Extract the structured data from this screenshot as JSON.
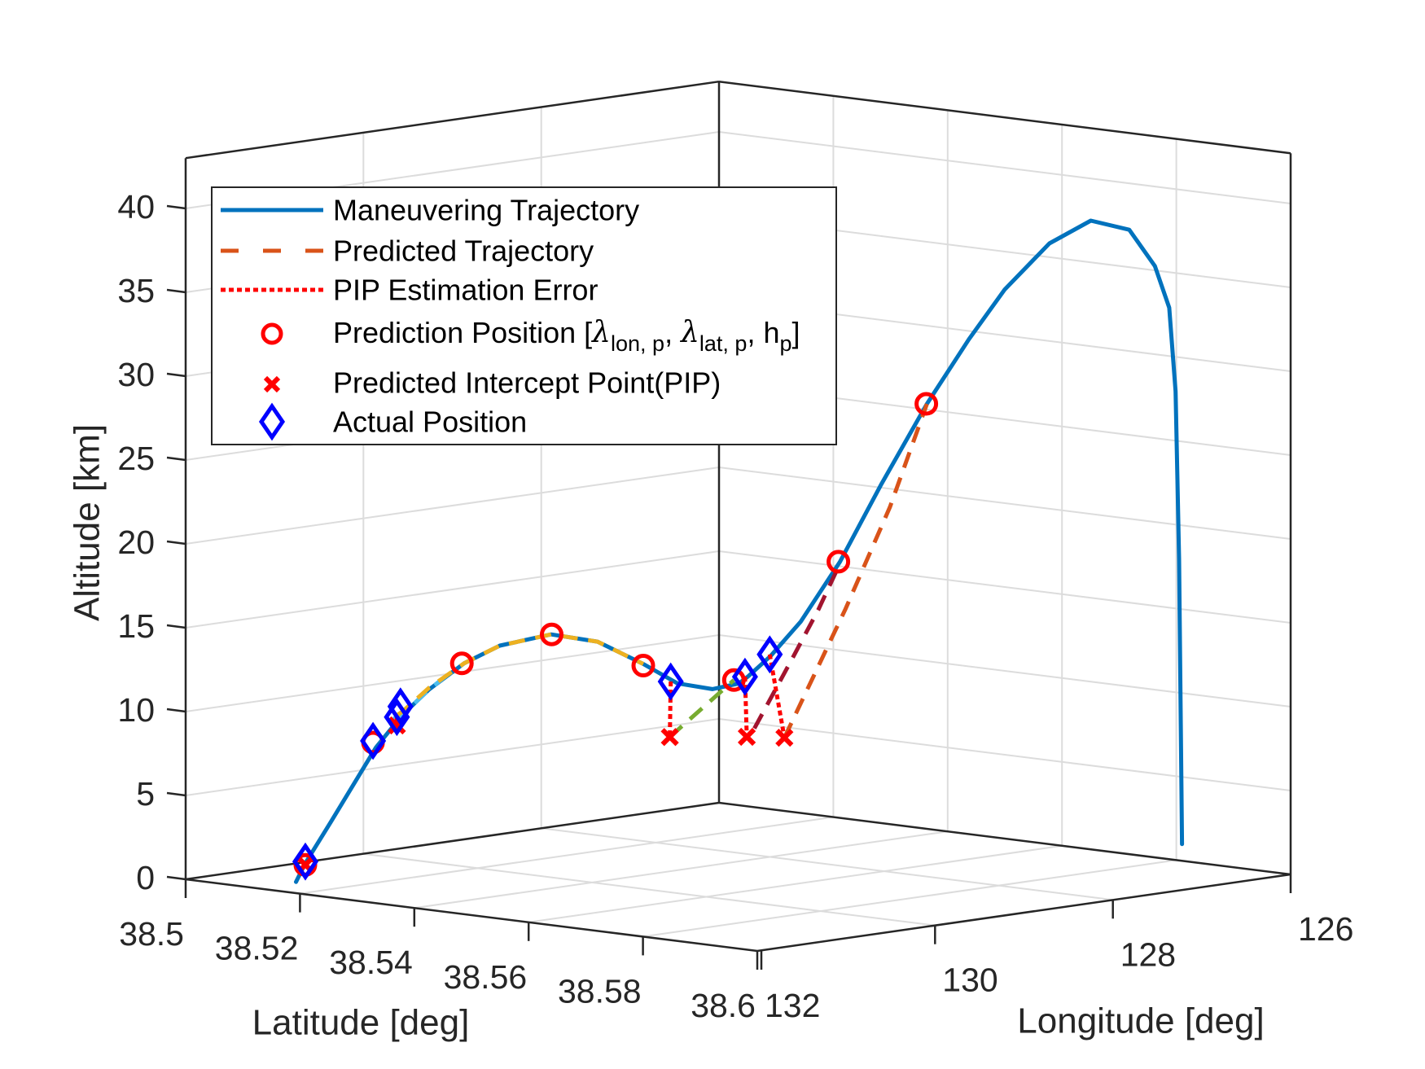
{
  "chart_data": {
    "type": "line3d",
    "title": "",
    "xlabel": "Longitude [deg]",
    "ylabel": "Latitude [deg]",
    "zlabel": "Altitude [km]",
    "xlim": [
      126,
      132
    ],
    "ylim": [
      38.5,
      38.6
    ],
    "zlim": [
      0,
      43
    ],
    "grid": true,
    "legend_position": "top-left",
    "x_ticks": [
      {
        "value": 132,
        "label": "132"
      },
      {
        "value": 130,
        "label": "130"
      },
      {
        "value": 128,
        "label": "128"
      },
      {
        "value": 126,
        "label": "126"
      }
    ],
    "y_ticks": [
      {
        "value": 38.5,
        "label": "38.5"
      },
      {
        "value": 38.52,
        "label": "38.52"
      },
      {
        "value": 38.54,
        "label": "38.54"
      },
      {
        "value": 38.56,
        "label": "38.56"
      },
      {
        "value": 38.58,
        "label": "38.58"
      },
      {
        "value": 38.6,
        "label": "38.6"
      }
    ],
    "z_ticks": [
      {
        "value": 0,
        "label": "0"
      },
      {
        "value": 5,
        "label": "5"
      },
      {
        "value": 10,
        "label": "10"
      },
      {
        "value": 15,
        "label": "15"
      },
      {
        "value": 20,
        "label": "20"
      },
      {
        "value": 25,
        "label": "25"
      },
      {
        "value": 30,
        "label": "30"
      },
      {
        "value": 35,
        "label": "35"
      },
      {
        "value": 40,
        "label": "40"
      }
    ],
    "legend": [
      {
        "label": "Maneuvering Trajectory",
        "style": "solid",
        "color": "#0072BD"
      },
      {
        "label": "Predicted Trajectory",
        "style": "dashed",
        "color": "#D95319"
      },
      {
        "label": "PIP Estimation Error",
        "style": "dotted",
        "color": "#FF0000"
      },
      {
        "parts": [
          "Prediction Position [",
          "λ",
          "lon, p",
          ", ",
          "λ",
          "lat, p",
          ", h",
          "p",
          "]"
        ],
        "style": "circle",
        "color": "#FF0000"
      },
      {
        "label": "Predicted Intercept Point(PIP)",
        "style": "x",
        "color": "#FF0000"
      },
      {
        "label": "Actual Position",
        "style": "diamond",
        "color": "#0000FF"
      }
    ],
    "series": {
      "maneuvering_trajectory": {
        "name": "Maneuvering Trajectory",
        "color": "#0072BD",
        "points_lon_lat_alt": [
          [
            131.53,
            38.512,
            0.0
          ],
          [
            131.47,
            38.5127,
            1.1
          ],
          [
            131.31,
            38.5148,
            3.6
          ],
          [
            131.03,
            38.5182,
            7.9
          ],
          [
            130.87,
            38.5203,
            9.8
          ],
          [
            130.7,
            38.5224,
            11.3
          ],
          [
            130.48,
            38.5251,
            12.8
          ],
          [
            130.26,
            38.5279,
            13.8
          ],
          [
            129.94,
            38.5319,
            14.4
          ],
          [
            129.65,
            38.5355,
            13.9
          ],
          [
            129.36,
            38.539,
            12.5
          ],
          [
            129.15,
            38.5417,
            11.3
          ],
          [
            128.93,
            38.5444,
            10.9
          ],
          [
            128.77,
            38.5465,
            11.2
          ],
          [
            128.71,
            38.5472,
            11.6
          ],
          [
            128.57,
            38.549,
            12.8
          ],
          [
            128.38,
            38.5513,
            14.8
          ],
          [
            128.14,
            38.5544,
            18.3
          ],
          [
            127.88,
            38.5575,
            22.8
          ],
          [
            127.59,
            38.5611,
            27.6
          ],
          [
            127.33,
            38.5644,
            31.4
          ],
          [
            127.11,
            38.5672,
            34.3
          ],
          [
            126.83,
            38.5707,
            37.0
          ],
          [
            126.57,
            38.5739,
            38.3
          ],
          [
            126.33,
            38.5769,
            37.7
          ],
          [
            126.17,
            38.5789,
            35.5
          ],
          [
            126.08,
            38.58,
            33.0
          ],
          [
            126.04,
            38.5805,
            28.0
          ],
          [
            126.02,
            38.5808,
            18.0
          ],
          [
            126.0,
            38.581,
            1.0
          ]
        ]
      },
      "predicted_trajectories": [
        {
          "color": "#4DBEEE",
          "points_lon_lat_alt": [
            [
              130.93,
              38.5197,
              9.6
            ],
            [
              130.87,
              38.5203,
              9.8
            ],
            [
              130.7,
              38.5224,
              11.3
            ],
            [
              130.55,
              38.5243,
              12.4
            ]
          ]
        },
        {
          "color": "#EDB120",
          "points_lon_lat_alt": [
            [
              130.91,
              38.52,
              9.8
            ],
            [
              130.87,
              38.5203,
              10.0
            ],
            [
              130.7,
              38.5224,
              11.4
            ],
            [
              130.48,
              38.5251,
              12.8
            ],
            [
              130.26,
              38.5279,
              13.8
            ],
            [
              129.94,
              38.5319,
              14.4
            ],
            [
              129.65,
              38.5355,
              13.9
            ],
            [
              129.36,
              38.539,
              12.5
            ]
          ]
        },
        {
          "color": "#77AC30",
          "points_lon_lat_alt": [
            [
              129.19,
              38.541,
              8.1
            ],
            [
              128.79,
              38.546,
              11.4
            ]
          ]
        },
        {
          "color": "#A2142F",
          "points_lon_lat_alt": [
            [
              128.67,
              38.5477,
              8.5
            ],
            [
              128.43,
              38.5506,
              12.6
            ],
            [
              128.27,
              38.5527,
              15.5
            ],
            [
              128.13,
              38.5544,
              18.3
            ]
          ]
        },
        {
          "color": "#D95319",
          "points_lon_lat_alt": [
            [
              128.48,
              38.55,
              7.9
            ],
            [
              128.1,
              38.5548,
              15.5
            ],
            [
              127.82,
              38.5582,
              21.5
            ],
            [
              127.59,
              38.5611,
              27.6
            ]
          ]
        }
      ],
      "prediction_positions": {
        "color": "#FF0000",
        "points_lon_lat_alt": [
          [
            131.47,
            38.5127,
            1.0
          ],
          [
            131.05,
            38.518,
            8.2
          ],
          [
            130.5,
            38.525,
            12.8
          ],
          [
            129.94,
            38.532,
            14.4
          ],
          [
            129.36,
            38.539,
            12.4
          ],
          [
            128.79,
            38.546,
            11.4
          ],
          [
            128.13,
            38.554,
            18.3
          ],
          [
            127.59,
            38.561,
            27.6
          ]
        ]
      },
      "predicted_intercept_points": {
        "color": "#FF0000",
        "points_lon_lat_alt": [
          [
            131.47,
            38.5127,
            1.0
          ],
          [
            130.91,
            38.52,
            9.2
          ],
          [
            129.19,
            38.541,
            8.1
          ],
          [
            128.71,
            38.547,
            8.0
          ],
          [
            128.48,
            38.55,
            7.9
          ]
        ]
      },
      "actual_positions": {
        "color": "#0000FF",
        "points_lon_lat_alt": [
          [
            131.47,
            38.5127,
            1.2
          ],
          [
            131.05,
            38.518,
            8.3
          ],
          [
            130.91,
            38.52,
            9.7
          ],
          [
            130.87,
            38.52,
            10.3
          ],
          [
            129.18,
            38.541,
            11.4
          ],
          [
            128.73,
            38.547,
            11.6
          ],
          [
            128.58,
            38.549,
            12.9
          ]
        ]
      },
      "pip_estimation_errors": {
        "color": "#FF0000",
        "segments_lon_lat_alt": [
          [
            [
              130.91,
              38.52,
              9.7
            ],
            [
              130.91,
              38.52,
              9.2
            ]
          ],
          [
            [
              129.18,
              38.541,
              11.4
            ],
            [
              129.19,
              38.541,
              8.1
            ]
          ],
          [
            [
              128.73,
              38.547,
              11.6
            ],
            [
              128.71,
              38.547,
              8.0
            ]
          ],
          [
            [
              128.58,
              38.549,
              12.9
            ],
            [
              128.48,
              38.55,
              7.9
            ]
          ]
        ]
      }
    }
  }
}
